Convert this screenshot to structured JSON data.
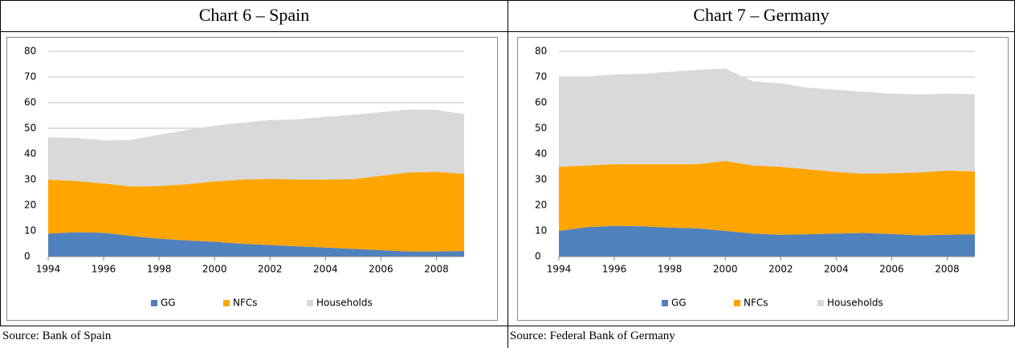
{
  "chart_data": [
    {
      "type": "stacked_area",
      "title": "Chart 6 – Spain",
      "source": "Source: Bank of Spain",
      "x": [
        1994,
        1995,
        1996,
        1997,
        1998,
        1999,
        2000,
        2001,
        2002,
        2003,
        2004,
        2005,
        2006,
        2007,
        2008,
        2009
      ],
      "xlim": [
        1994,
        2009
      ],
      "xticks": [
        1994,
        1996,
        1998,
        2000,
        2002,
        2004,
        2006,
        2008
      ],
      "ylim": [
        0,
        80
      ],
      "yticks": [
        0,
        10,
        20,
        30,
        40,
        50,
        60,
        70,
        80
      ],
      "grid": true,
      "legend": "bottom",
      "series": [
        {
          "name": "GG",
          "color": "#4f81bd",
          "values": [
            9,
            9.5,
            9.3,
            8,
            7,
            6.3,
            5.8,
            5,
            4.5,
            4,
            3.5,
            3,
            2.5,
            2,
            2,
            2.2
          ]
        },
        {
          "name": "NFCs",
          "color": "#ffa500",
          "values": [
            21,
            20,
            19.2,
            19.3,
            20.5,
            21.9,
            23.5,
            25,
            25.8,
            26,
            26.5,
            27.2,
            29,
            30.8,
            31,
            30.1
          ]
        },
        {
          "name": "Households",
          "color": "#d9d9d9",
          "values": [
            16.5,
            16.8,
            16.8,
            18.2,
            20,
            21.1,
            21.7,
            22.2,
            22.9,
            23.5,
            24.5,
            25.1,
            24.8,
            24.5,
            24.2,
            23.2
          ]
        }
      ]
    },
    {
      "type": "stacked_area",
      "title": "Chart 7 – Germany",
      "source": "Source: Federal Bank of Germany",
      "x": [
        1994,
        1995,
        1996,
        1997,
        1998,
        1999,
        2000,
        2001,
        2002,
        2003,
        2004,
        2005,
        2006,
        2007,
        2008,
        2009
      ],
      "xlim": [
        1994,
        2009
      ],
      "xticks": [
        1994,
        1996,
        1998,
        2000,
        2002,
        2004,
        2006,
        2008
      ],
      "ylim": [
        0,
        80
      ],
      "yticks": [
        0,
        10,
        20,
        30,
        40,
        50,
        60,
        70,
        80
      ],
      "grid": true,
      "legend": "bottom",
      "series": [
        {
          "name": "GG",
          "color": "#4f81bd",
          "values": [
            10,
            11.5,
            12,
            11.8,
            11.3,
            11,
            10,
            9,
            8.5,
            8.7,
            9,
            9.2,
            8.8,
            8.3,
            8.5,
            8.7
          ]
        },
        {
          "name": "NFCs",
          "color": "#ffa500",
          "values": [
            25,
            24,
            24,
            24.2,
            24.7,
            25,
            27.3,
            26.5,
            26.5,
            25.3,
            24,
            23.1,
            23.7,
            24.5,
            25,
            24.5
          ]
        },
        {
          "name": "Households",
          "color": "#d9d9d9",
          "values": [
            35,
            34.7,
            35,
            35.2,
            36,
            36.8,
            36,
            32.8,
            32.5,
            31.8,
            32,
            31.9,
            31,
            30.4,
            30,
            30.1
          ]
        }
      ]
    }
  ]
}
